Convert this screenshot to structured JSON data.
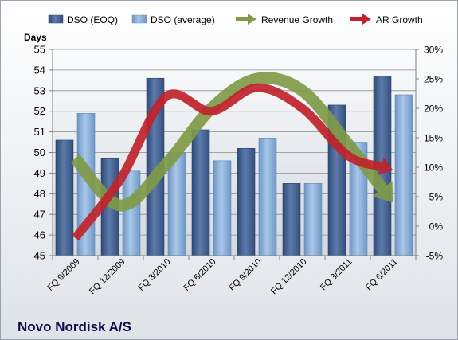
{
  "chart_data": {
    "type": "bar",
    "title": "Novo Nordisk A/S",
    "ylabel": "Days",
    "categories": [
      "FQ 9/2009",
      "FQ 12/2009",
      "FQ 3/2010",
      "FQ 6/2010",
      "FQ 9/2010",
      "FQ 12/2010",
      "FQ 3/2011",
      "FQ 6/2011"
    ],
    "left_axis": {
      "ylim": [
        45,
        55
      ],
      "ticks": [
        "45",
        "46",
        "47",
        "48",
        "49",
        "50",
        "51",
        "52",
        "53",
        "54",
        "55"
      ]
    },
    "right_axis": {
      "ylim": [
        -5,
        30
      ],
      "ticks": [
        "-5%",
        "0%",
        "5%",
        "10%",
        "15%",
        "20%",
        "25%",
        "30%"
      ]
    },
    "grid": true,
    "legend_position": "top",
    "series": [
      {
        "name": "DSO (EOQ)",
        "type": "bar",
        "axis": "left",
        "color": "#4a6796",
        "values": [
          50.6,
          49.7,
          53.6,
          51.1,
          50.2,
          48.5,
          52.3,
          53.7
        ]
      },
      {
        "name": "DSO (average)",
        "type": "bar",
        "axis": "left",
        "color": "#8fb3dc",
        "values": [
          51.9,
          49.1,
          50.0,
          49.6,
          50.7,
          48.5,
          50.5,
          52.8
        ]
      },
      {
        "name": "Revenue Growth",
        "type": "line",
        "axis": "right",
        "color": "#7f9a48",
        "values": [
          11.5,
          3.5,
          10.5,
          20.0,
          25.0,
          23.0,
          14.0,
          4.0
        ]
      },
      {
        "name": "AR Growth",
        "type": "line",
        "axis": "right",
        "color": "#c0232b",
        "values": [
          -2.0,
          8.0,
          22.0,
          19.5,
          23.5,
          20.0,
          12.0,
          9.5
        ]
      }
    ]
  }
}
